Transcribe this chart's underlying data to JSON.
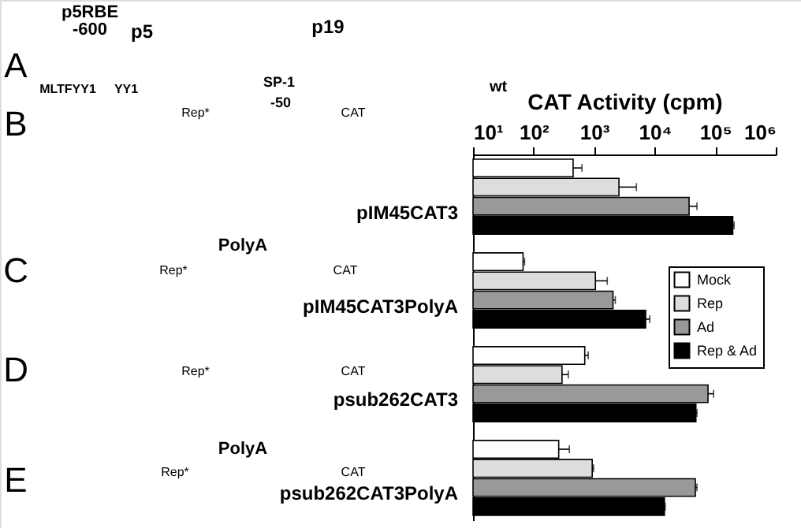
{
  "chart_data": {
    "type": "bar",
    "orientation": "horizontal",
    "log": "x",
    "xlabel": "CAT Activity (cpm)",
    "categories": [
      "pIM45CAT3",
      "pIM45CAT3PolyA",
      "psub262CAT3",
      "psub262CAT3PolyA"
    ],
    "series": [
      {
        "name": "Mock",
        "color": "#ffffff",
        "values": [
          450,
          67,
          700,
          260
        ],
        "errors": [
          [
            450,
            630
          ],
          [
            67,
            71
          ],
          [
            700,
            800
          ],
          [
            260,
            390
          ]
        ]
      },
      {
        "name": "Rep",
        "color": "#dddddd",
        "values": [
          2570,
          1050,
          295,
          930
        ],
        "errors": [
          [
            2570,
            5000
          ],
          [
            1050,
            1650
          ],
          [
            295,
            375
          ],
          [
            930,
            980
          ]
        ]
      },
      {
        "name": "Ad",
        "color": "#999999",
        "values": [
          37000,
          2050,
          76000,
          47000
        ],
        "errors": [
          [
            37000,
            50000
          ],
          [
            2050,
            2240
          ],
          [
            76000,
            94000
          ],
          [
            47000,
            50000
          ]
        ]
      },
      {
        "name": "Rep & Ad",
        "color": "#000000",
        "values": [
          195000,
          7100,
          48000,
          14500
        ],
        "errors": [
          [
            195000,
            205000
          ],
          [
            7100,
            8300
          ],
          [
            48000,
            50000
          ],
          [
            14500,
            14900
          ]
        ]
      }
    ],
    "xlim": [
      10,
      1000000
    ],
    "xticks": [
      {
        "value": 10,
        "label": "10¹"
      },
      {
        "value": 100,
        "label": "10²"
      },
      {
        "value": 1000,
        "label": "10³"
      },
      {
        "value": 10000,
        "label": "10⁴"
      },
      {
        "value": 100000,
        "label": "10⁵"
      },
      {
        "value": 1000000,
        "label": "10⁶"
      }
    ],
    "grid": false,
    "legend": "right",
    "annotations": [
      "A",
      "B",
      "C",
      "D",
      "E",
      "p5RBE",
      "-600",
      "p5",
      "p19",
      "MLTFYY1",
      "YY1",
      "SP-1",
      "-50",
      "wt",
      "Rep*",
      "CAT",
      "PolyA",
      "Rep*",
      "CAT",
      "Rep*",
      "CAT",
      "PolyA",
      "Rep*",
      "CAT"
    ]
  }
}
